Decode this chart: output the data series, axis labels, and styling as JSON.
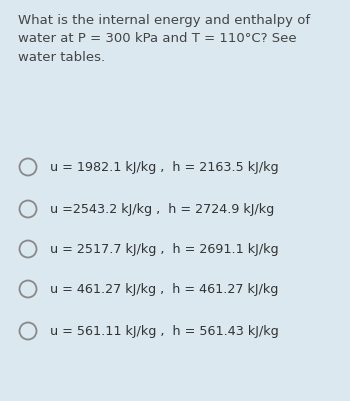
{
  "background_color": "#dce8f0",
  "question_lines": [
    "What is the internal energy and enthalpy of",
    "water at P = 300 kPa and T = 110°C? See",
    "water tables."
  ],
  "options": [
    "u = 1982.1 kJ/kg ,  h = 2163.5 kJ/kg",
    "u =2543.2 kJ/kg ,  h = 2724.9 kJ/kg",
    "u = 2517.7 kJ/kg ,  h = 2691.1 kJ/kg",
    "u = 461.27 kJ/kg ,  h = 461.27 kJ/kg",
    "u = 561.11 kJ/kg ,  h = 561.43 kJ/kg"
  ],
  "question_font_size": 9.5,
  "option_font_size": 9.2,
  "circle_color": "#888888",
  "text_color": "#444444",
  "option_text_color": "#333333",
  "fig_width": 3.5,
  "fig_height": 4.02,
  "dpi": 100
}
